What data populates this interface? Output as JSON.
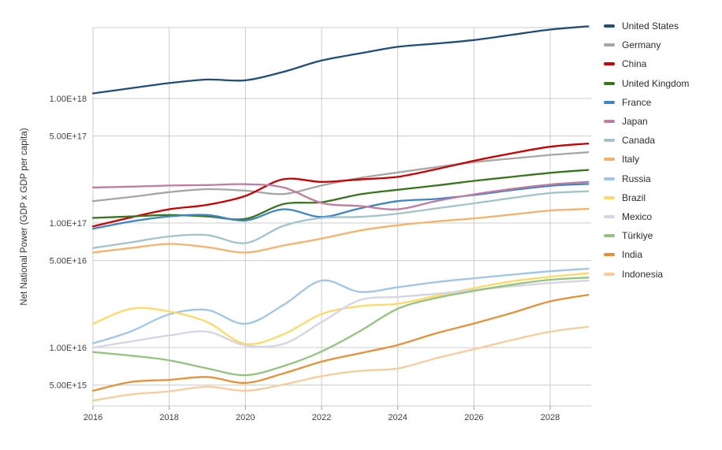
{
  "chart_data": {
    "type": "line",
    "title": "",
    "xlabel": "",
    "ylabel": "Net National Power (GDP x GDP per capita)",
    "y_scale": "log",
    "grid": true,
    "legend_position": "right",
    "x_years": [
      2016,
      2017,
      2018,
      2019,
      2020,
      2021,
      2022,
      2023,
      2024,
      2025,
      2026,
      2027,
      2028,
      2029
    ],
    "x_ticks": [
      {
        "label": "2016",
        "year": 2016
      },
      {
        "label": "2018",
        "year": 2018
      },
      {
        "label": "2020",
        "year": 2020
      },
      {
        "label": "2022",
        "year": 2022
      },
      {
        "label": "2024",
        "year": 2024
      },
      {
        "label": "2026",
        "year": 2026
      },
      {
        "label": "2028",
        "year": 2028
      }
    ],
    "y_ticks": [
      {
        "label": "1.00E+18",
        "value": 1e+18
      },
      {
        "label": "5.00E+17",
        "value": 5e+17
      },
      {
        "label": "1.00E+17",
        "value": 1e+17
      },
      {
        "label": "5.00E+16",
        "value": 5e+16
      },
      {
        "label": "1.00E+16",
        "value": 1e+16
      },
      {
        "label": "5.00E+15",
        "value": 5000000000000000.0
      }
    ],
    "series": [
      {
        "name": "United States",
        "color": "#1f4e79",
        "values": [
          1.1e+18,
          1.21e+18,
          1.33e+18,
          1.42e+18,
          1.4e+18,
          1.64e+18,
          2.02e+18,
          2.3e+18,
          2.6e+18,
          2.76e+18,
          2.95e+18,
          3.25e+18,
          3.58e+18,
          3.8e+18
        ]
      },
      {
        "name": "Germany",
        "color": "#a6a6a6",
        "values": [
          1.5e+17,
          1.62e+17,
          1.77e+17,
          1.87e+17,
          1.82e+17,
          1.71e+17,
          2e+17,
          2.3e+17,
          2.55e+17,
          2.81e+17,
          3.08e+17,
          3.3e+17,
          3.52e+17,
          3.7e+17
        ]
      },
      {
        "name": "China",
        "color": "#cc0000",
        "values": [
          9.4e+16,
          1.11e+17,
          1.29e+17,
          1.4e+17,
          1.65e+17,
          2.25e+17,
          2.14e+17,
          2.24e+17,
          2.35e+17,
          2.7e+17,
          3.16e+17,
          3.63e+17,
          4.1e+17,
          4.35e+17
        ]
      },
      {
        "name": "United Kingdom",
        "color": "#38761d",
        "values": [
          1.1e+17,
          1.13e+17,
          1.16e+17,
          1.13e+17,
          1.08e+17,
          1.42e+17,
          1.47e+17,
          1.7e+17,
          1.85e+17,
          2e+17,
          2.18e+17,
          2.35e+17,
          2.53e+17,
          2.67e+17
        ]
      },
      {
        "name": "France",
        "color": "#3d85c6",
        "values": [
          9e+16,
          1.03e+17,
          1.13e+17,
          1.16e+17,
          1.05e+17,
          1.29e+17,
          1.12e+17,
          1.31e+17,
          1.5e+17,
          1.56e+17,
          1.68e+17,
          1.84e+17,
          1.99e+17,
          2.06e+17
        ]
      },
      {
        "name": "Japan",
        "color": "#c27ba0",
        "values": [
          1.93e+17,
          1.96e+17,
          2e+17,
          2.02e+17,
          2.05e+17,
          1.93e+17,
          1.45e+17,
          1.37e+17,
          1.29e+17,
          1.5e+17,
          1.7e+17,
          1.88e+17,
          2.04e+17,
          2.14e+17
        ]
      },
      {
        "name": "Canada",
        "color": "#a2c4c9",
        "values": [
          6.3e+16,
          7e+16,
          7.8e+16,
          8e+16,
          6.9e+16,
          9.5e+16,
          1.1e+17,
          1.12e+17,
          1.19e+17,
          1.31e+17,
          1.44e+17,
          1.59e+17,
          1.74e+17,
          1.8e+17
        ]
      },
      {
        "name": "Italy",
        "color": "#f6b26b",
        "values": [
          5.8e+16,
          6.3e+16,
          6.8e+16,
          6.4e+16,
          5.8e+16,
          6.6e+16,
          7.5e+16,
          8.7e+16,
          9.6e+16,
          1.03e+17,
          1.09e+17,
          1.17e+17,
          1.26e+17,
          1.3e+17
        ]
      },
      {
        "name": "Russia",
        "color": "#9fc5e8",
        "values": [
          1.08e+16,
          1.35e+16,
          1.85e+16,
          2e+16,
          1.55e+16,
          2.2e+16,
          3.45e+16,
          2.8e+16,
          3.05e+16,
          3.35e+16,
          3.6e+16,
          3.85e+16,
          4.1e+16,
          4.3e+16
        ]
      },
      {
        "name": "Brazil",
        "color": "#ffd966",
        "values": [
          1.55e+16,
          2.05e+16,
          1.95e+16,
          1.6e+16,
          1.07e+16,
          1.28e+16,
          1.86e+16,
          2.15e+16,
          2.25e+16,
          2.6e+16,
          3e+16,
          3.4e+16,
          3.7e+16,
          3.95e+16
        ]
      },
      {
        "name": "Mexico",
        "color": "#d6d3e6",
        "values": [
          1e+16,
          1.12e+16,
          1.25e+16,
          1.34e+16,
          1.04e+16,
          1.07e+16,
          1.6e+16,
          2.4e+16,
          2.55e+16,
          2.7e+16,
          2.9e+16,
          3.1e+16,
          3.3e+16,
          3.45e+16
        ]
      },
      {
        "name": "Türkiye",
        "color": "#93c47d",
        "values": [
          9200000000000000.0,
          8600000000000000.0,
          7900000000000000.0,
          6800000000000000.0,
          6000000000000000.0,
          7100000000000000.0,
          9300000000000000.0,
          1.35e+16,
          2.05e+16,
          2.5e+16,
          2.85e+16,
          3.2e+16,
          3.5e+16,
          3.65e+16
        ]
      },
      {
        "name": "India",
        "color": "#e69138",
        "values": [
          4500000000000000.0,
          5300000000000000.0,
          5500000000000000.0,
          5800000000000000.0,
          5200000000000000.0,
          6200000000000000.0,
          7700000000000000.0,
          9000000000000000.0,
          1.05e+16,
          1.3e+16,
          1.56e+16,
          1.9e+16,
          2.35e+16,
          2.65e+16
        ]
      },
      {
        "name": "Indonesia",
        "color": "#f9cb9c",
        "values": [
          3750000000000000.0,
          4200000000000000.0,
          4450000000000000.0,
          4850000000000000.0,
          4500000000000000.0,
          5050000000000000.0,
          5900000000000000.0,
          6500000000000000.0,
          6800000000000000.0,
          8200000000000000.0,
          9700000000000000.0,
          1.15e+16,
          1.34e+16,
          1.47e+16
        ]
      }
    ],
    "style": {
      "grid_color": "#cccccc",
      "tick_color": "#999999",
      "tick_label_color": "#424242",
      "legend_text_color": "#2d2d2d",
      "background": "#ffffff"
    }
  }
}
